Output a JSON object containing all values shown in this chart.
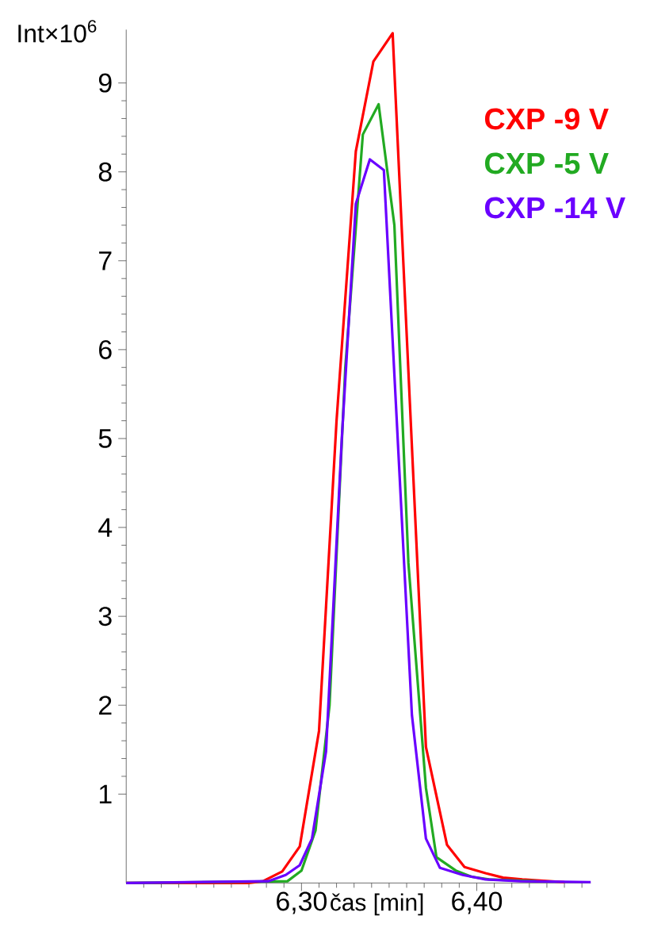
{
  "chart_data": {
    "type": "line",
    "xlabel": "čas [min]",
    "ylabel": "Int×10$^{6}$",
    "xlim": [
      6.2,
      6.465
    ],
    "ylim": [
      0,
      9.6
    ],
    "xticks": [
      {
        "value": 6.21,
        "label": null
      },
      {
        "value": 6.22,
        "label": null
      },
      {
        "value": 6.23,
        "label": null
      },
      {
        "value": 6.24,
        "label": null
      },
      {
        "value": 6.25,
        "label": null
      },
      {
        "value": 6.26,
        "label": null
      },
      {
        "value": 6.27,
        "label": null
      },
      {
        "value": 6.28,
        "label": null
      },
      {
        "value": 6.29,
        "label": null
      },
      {
        "value": 6.3,
        "label": "6,30"
      },
      {
        "value": 6.31,
        "label": null
      },
      {
        "value": 6.32,
        "label": null
      },
      {
        "value": 6.33,
        "label": null
      },
      {
        "value": 6.34,
        "label": null
      },
      {
        "value": 6.35,
        "label": null
      },
      {
        "value": 6.36,
        "label": null
      },
      {
        "value": 6.37,
        "label": null
      },
      {
        "value": 6.38,
        "label": null
      },
      {
        "value": 6.39,
        "label": null
      },
      {
        "value": 6.4,
        "label": "6,40"
      },
      {
        "value": 6.41,
        "label": null
      },
      {
        "value": 6.42,
        "label": null
      },
      {
        "value": 6.43,
        "label": null
      },
      {
        "value": 6.44,
        "label": null
      },
      {
        "value": 6.45,
        "label": null
      },
      {
        "value": 6.46,
        "label": null
      }
    ],
    "yticks": [
      1,
      2,
      3,
      4,
      5,
      6,
      7,
      8,
      9
    ],
    "grid": false,
    "legend": "top right",
    "marker": "none",
    "line_style": "solid",
    "series": [
      {
        "name": "CXP -9 V",
        "color": "#ff0000",
        "x": [
          6.2,
          6.27,
          6.278,
          6.289,
          6.299,
          6.31,
          6.32,
          6.331,
          6.341,
          6.352,
          6.371,
          6.383,
          6.393,
          6.405,
          6.415,
          6.426,
          6.45
        ],
        "values": [
          0,
          0,
          0.02,
          0.13,
          0.41,
          1.71,
          5.2,
          8.23,
          9.24,
          9.56,
          1.53,
          0.43,
          0.18,
          0.11,
          0.06,
          0.04,
          0.01
        ]
      },
      {
        "name": "CXP -5 V",
        "color": "#22aa22",
        "x": [
          6.2,
          6.292,
          6.3,
          6.308,
          6.316,
          6.325,
          6.335,
          6.344,
          6.353,
          6.361,
          6.371,
          6.377,
          6.388,
          6.397,
          6.407,
          6.434
        ],
        "values": [
          0,
          0.02,
          0.14,
          0.59,
          2.0,
          5.8,
          8.42,
          8.76,
          7.4,
          3.6,
          1.07,
          0.29,
          0.14,
          0.07,
          0.04,
          0.02
        ]
      },
      {
        "name": "CXP -14 V",
        "color": "#6a00ff",
        "x": [
          6.2,
          6.281,
          6.291,
          6.299,
          6.306,
          6.314,
          6.323,
          6.331,
          6.339,
          6.347,
          6.363,
          6.371,
          6.379,
          6.392,
          6.405,
          6.425,
          6.465
        ],
        "values": [
          0,
          0.02,
          0.09,
          0.2,
          0.5,
          1.48,
          5.0,
          7.64,
          8.14,
          8.02,
          1.89,
          0.5,
          0.17,
          0.09,
          0.04,
          0.02,
          0.01
        ]
      }
    ]
  }
}
